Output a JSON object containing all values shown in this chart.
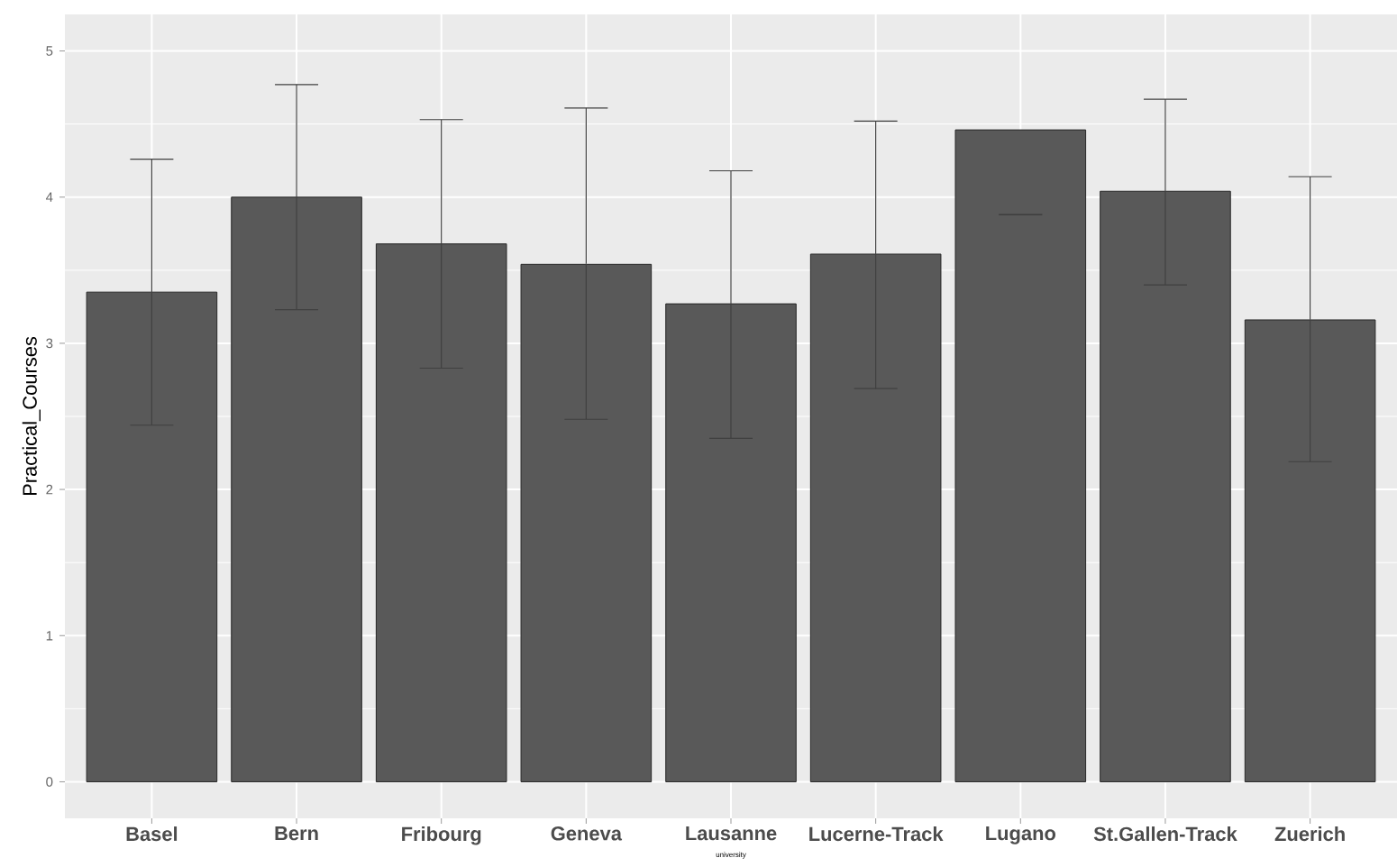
{
  "chart_data": {
    "type": "bar",
    "xlabel": "university",
    "ylabel": "Practical_Courses",
    "categories": [
      "Basel",
      "Bern",
      "Fribourg",
      "Geneva",
      "Lausanne",
      "Lucerne-Track",
      "Lugano",
      "St.Gallen-Track",
      "Zuerich"
    ],
    "values": [
      3.35,
      4.0,
      3.68,
      3.54,
      3.27,
      3.61,
      4.46,
      4.04,
      3.16
    ],
    "errors": [
      [
        2.44,
        4.26
      ],
      [
        3.23,
        4.77
      ],
      [
        2.83,
        4.53
      ],
      [
        2.48,
        4.61
      ],
      [
        2.35,
        4.18
      ],
      [
        2.69,
        4.52
      ],
      [
        3.88,
        3.88
      ],
      [
        3.4,
        4.67
      ],
      [
        2.19,
        4.14
      ]
    ],
    "color": "#595959",
    "ylim": [
      -0.25,
      5.25
    ],
    "yticks": [
      0,
      1,
      2,
      3,
      4,
      5
    ],
    "grid": true
  }
}
